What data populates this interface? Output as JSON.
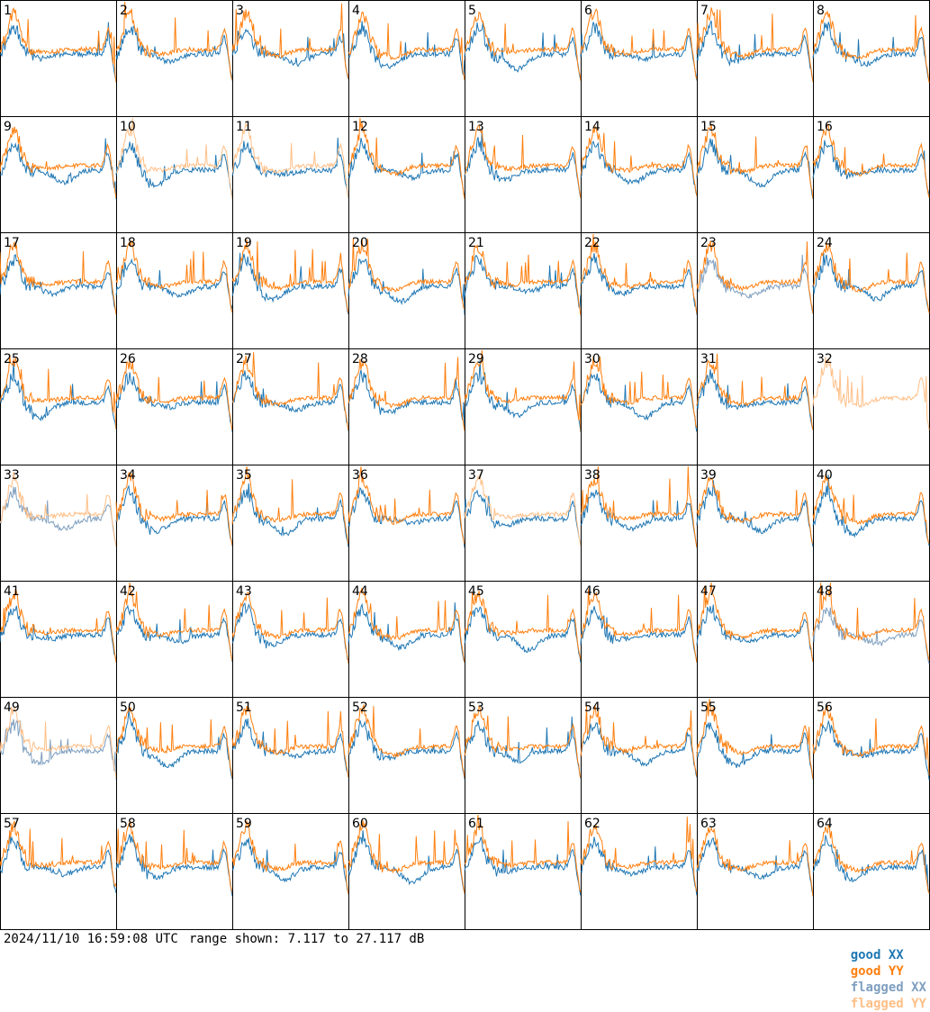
{
  "footer": {
    "timestamp": "2024/11/10 16:59:08 UTC",
    "range": "range shown: 7.117 to 27.117 dB"
  },
  "legend": [
    {
      "label": "good XX",
      "color": "#1f77b4"
    },
    {
      "label": "good YY",
      "color": "#ff7f0e"
    },
    {
      "label": "flagged XX",
      "color": "#7f9fbf"
    },
    {
      "label": "flagged YY",
      "color": "#ffbf87"
    }
  ],
  "chart_data": {
    "type": "line",
    "layout": "8x8 small-multiples",
    "ylim_db": [
      7.117,
      27.117
    ],
    "panel_labels": [
      "1",
      "2",
      "3",
      "4",
      "5",
      "6",
      "7",
      "8",
      "9",
      "10",
      "11",
      "12",
      "13",
      "14",
      "15",
      "16",
      "17",
      "18",
      "19",
      "20",
      "21",
      "22",
      "23",
      "24",
      "25",
      "26",
      "27",
      "28",
      "29",
      "30",
      "31",
      "32",
      "33",
      "34",
      "35",
      "36",
      "37",
      "38",
      "39",
      "40",
      "41",
      "42",
      "43",
      "44",
      "45",
      "46",
      "47",
      "48",
      "49",
      "50",
      "51",
      "52",
      "53",
      "54",
      "55",
      "56",
      "57",
      "58",
      "59",
      "60",
      "61",
      "62",
      "63",
      "64"
    ],
    "panel_status": {
      "9": [
        "good",
        "flaggedY?"
      ],
      "10": [
        "good",
        "flagged"
      ],
      "11": [
        "good",
        "flagged"
      ],
      "23": [
        "flagged",
        "good"
      ],
      "32": [
        "none",
        "flagged"
      ],
      "33": [
        "flagged",
        "flagged"
      ],
      "37": [
        "good",
        "flagged"
      ],
      "48": [
        "flagged",
        "good"
      ],
      "49": [
        "flagged",
        "flagged"
      ]
    }
  }
}
